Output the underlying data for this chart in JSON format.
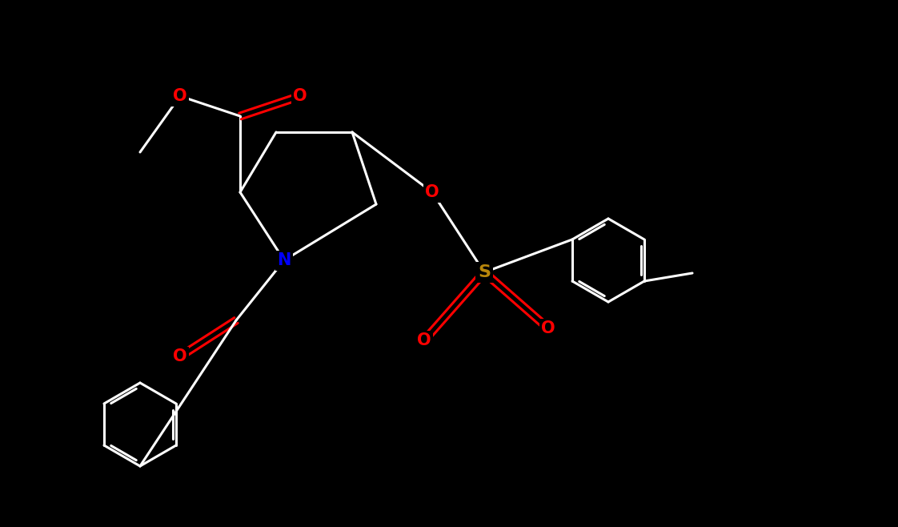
{
  "background_color": "#000000",
  "bond_color": "#ffffff",
  "atom_colors": {
    "O": "#ff0000",
    "N": "#0000ff",
    "S": "#b8860b",
    "C": "#ffffff"
  },
  "font_size": 16,
  "lw": 2.5
}
